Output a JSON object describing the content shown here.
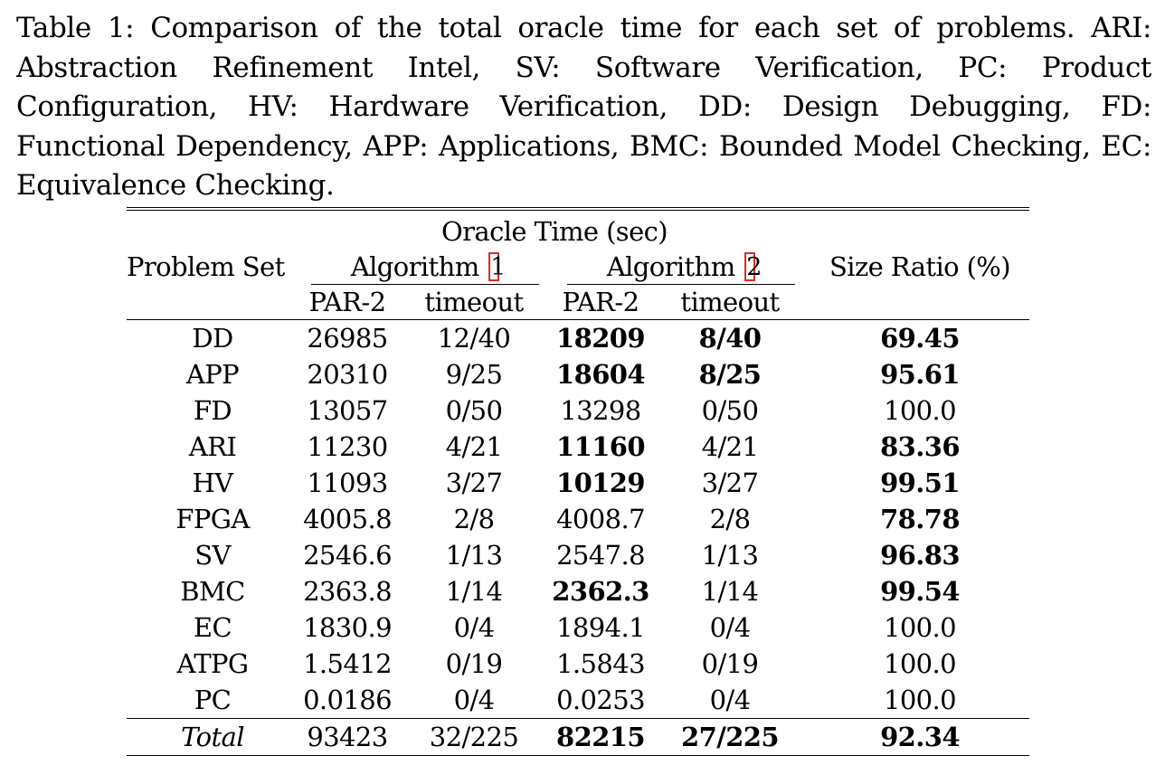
{
  "caption": "Table 1: Comparison of the total oracle time for each set of problems. ARI: Abstraction Refinement Intel, SV: Software Verification, PC: Product Configuration, HV: Hardware Verification, DD: Design Debugging, FD: Functional Dependency, APP: Applications, BMC: Bounded Model Checking, EC: Equivalence Checking.",
  "header": {
    "problem_set": "Problem Set",
    "oracle_time": "Oracle Time (sec)",
    "algorithm1": "Algorithm",
    "algorithm1_ref": "1",
    "algorithm2": "Algorithm",
    "algorithm2_ref": "2",
    "size_ratio": "Size Ratio (%)",
    "par2_1": "PAR-2",
    "timeout_1": "timeout",
    "par2_2": "PAR-2",
    "timeout_2": "timeout"
  },
  "rows": [
    {
      "set": "DD",
      "par1": "26985",
      "to1": "12/40",
      "par2": "18209",
      "to2": "8/40",
      "size": "69.45"
    },
    {
      "set": "APP",
      "par1": "20310",
      "to1": "9/25",
      "par2": "18604",
      "to2": "8/25",
      "size": "95.61"
    },
    {
      "set": "FD",
      "par1": "13057",
      "to1": "0/50",
      "par2": "13298",
      "to2": "0/50",
      "size": "100.0"
    },
    {
      "set": "ARI",
      "par1": "11230",
      "to1": "4/21",
      "par2": "11160",
      "to2": "4/21",
      "size": "83.36"
    },
    {
      "set": "HV",
      "par1": "11093",
      "to1": "3/27",
      "par2": "10129",
      "to2": "3/27",
      "size": "99.51"
    },
    {
      "set": "FPGA",
      "par1": "4005.8",
      "to1": "2/8",
      "par2": "4008.7",
      "to2": "2/8",
      "size": "78.78"
    },
    {
      "set": "SV",
      "par1": "2546.6",
      "to1": "1/13",
      "par2": "2547.8",
      "to2": "1/13",
      "size": "96.83"
    },
    {
      "set": "BMC",
      "par1": "2363.8",
      "to1": "1/14",
      "par2": "2362.3",
      "to2": "1/14",
      "size": "99.54"
    },
    {
      "set": "EC",
      "par1": "1830.9",
      "to1": "0/4",
      "par2": "1894.1",
      "to2": "0/4",
      "size": "100.0"
    },
    {
      "set": "ATPG",
      "par1": "1.5412",
      "to1": "0/19",
      "par2": "1.5843",
      "to2": "0/19",
      "size": "100.0"
    },
    {
      "set": "PC",
      "par1": "0.0186",
      "to1": "0/4",
      "par2": "0.0253",
      "to2": "0/4",
      "size": "100.0"
    }
  ],
  "total": {
    "set": "Total",
    "par1": "93423",
    "to1": "32/225",
    "par2": "82215",
    "to2": "27/225",
    "size": "92.34"
  }
}
